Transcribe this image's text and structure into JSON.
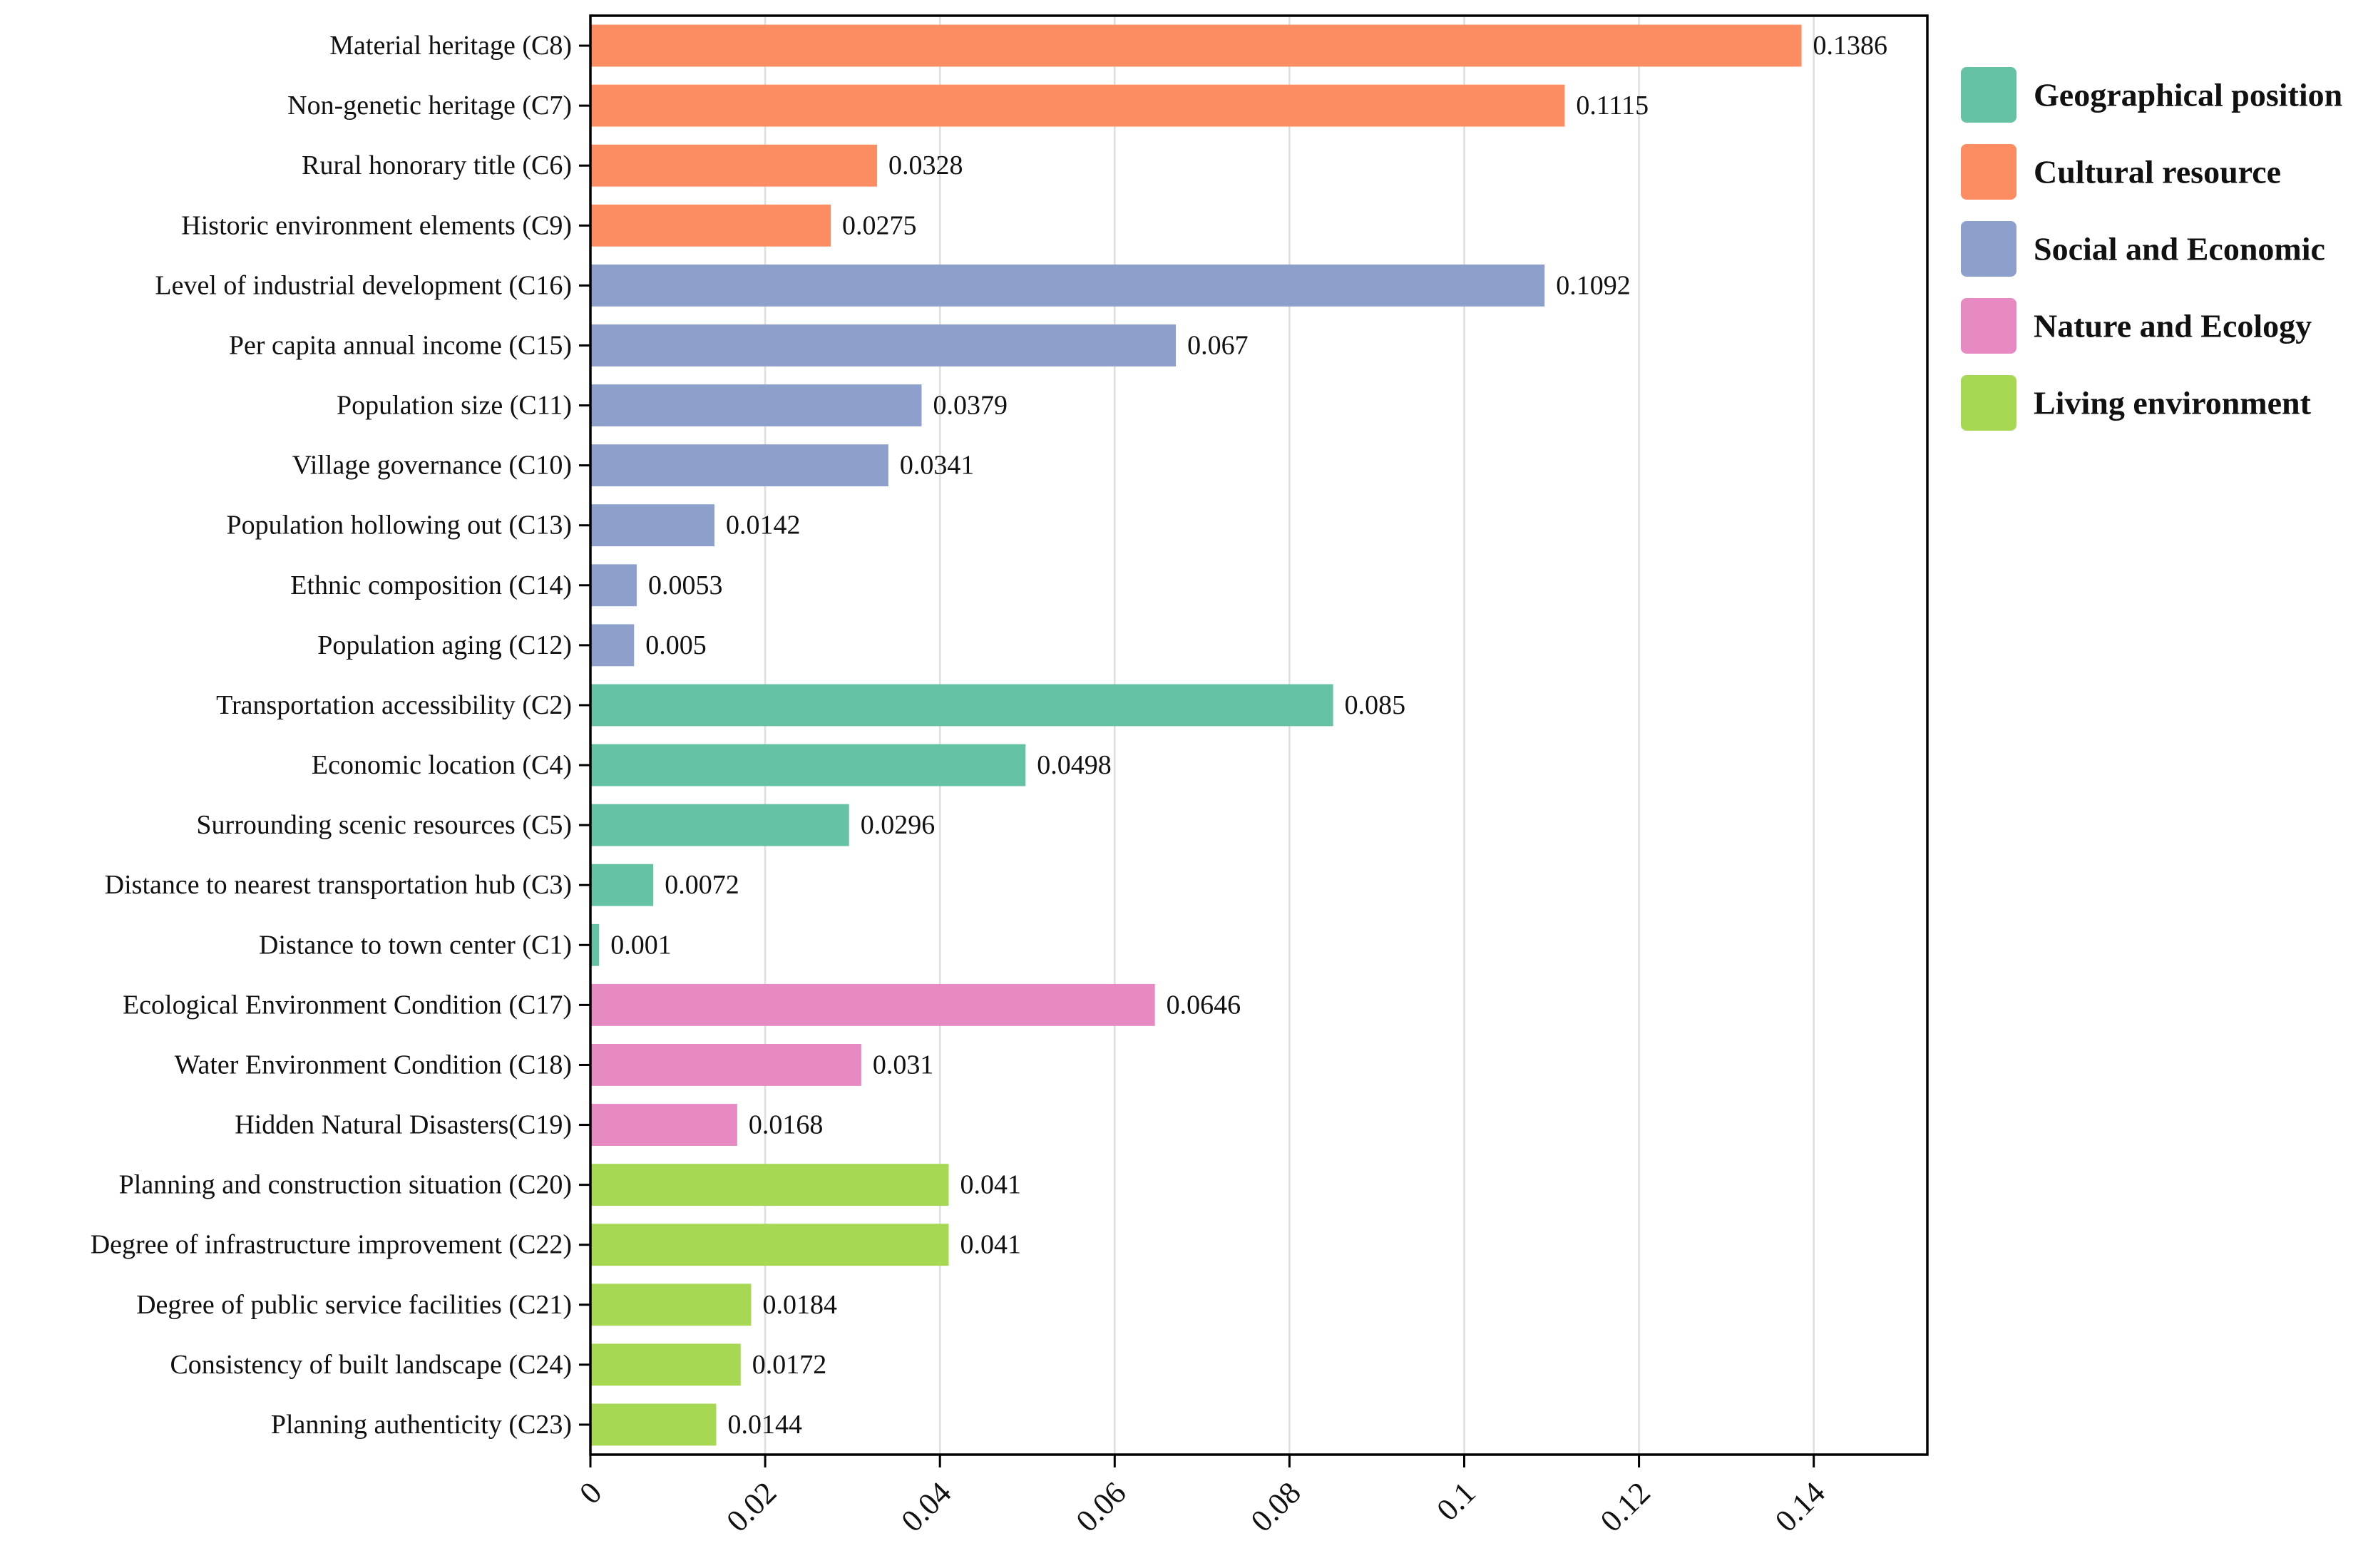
{
  "chart_data": {
    "type": "bar",
    "orientation": "horizontal",
    "title": "",
    "xlabel": "",
    "ylabel": "",
    "xlim": [
      0,
      0.153
    ],
    "x_ticks": [
      0,
      0.02,
      0.04,
      0.06,
      0.08,
      0.1,
      0.12,
      0.14
    ],
    "x_tick_labels": [
      "0",
      "0.02",
      "0.04",
      "0.06",
      "0.08",
      "0.1",
      "0.12",
      "0.14"
    ],
    "grid": "vertical",
    "legend_position": "top-right, outside plot",
    "groups": [
      {
        "name": "Geographical position",
        "color": "#66c2a5"
      },
      {
        "name": "Cultural resource",
        "color": "#fc8d62"
      },
      {
        "name": "Social and Economic",
        "color": "#8da0cb"
      },
      {
        "name": "Nature and Ecology",
        "color": "#e78ac3"
      },
      {
        "name": "Living environment",
        "color": "#a6d854"
      }
    ],
    "bars": [
      {
        "category": "Material heritage (C8)",
        "value": 0.1386,
        "label": "0.1386",
        "group": 1
      },
      {
        "category": "Non-genetic heritage (C7)",
        "value": 0.1115,
        "label": "0.1115",
        "group": 1
      },
      {
        "category": "Rural honorary title (C6)",
        "value": 0.0328,
        "label": "0.0328",
        "group": 1
      },
      {
        "category": "Historic environment elements (C9)",
        "value": 0.0275,
        "label": "0.0275",
        "group": 1
      },
      {
        "category": "Level of industrial development (C16)",
        "value": 0.1092,
        "label": "0.1092",
        "group": 2
      },
      {
        "category": "Per capita annual income (C15)",
        "value": 0.067,
        "label": "0.067",
        "group": 2
      },
      {
        "category": "Population size (C11)",
        "value": 0.0379,
        "label": "0.0379",
        "group": 2
      },
      {
        "category": "Village governance (C10)",
        "value": 0.0341,
        "label": "0.0341",
        "group": 2
      },
      {
        "category": "Population hollowing out (C13)",
        "value": 0.0142,
        "label": "0.0142",
        "group": 2
      },
      {
        "category": "Ethnic composition (C14)",
        "value": 0.0053,
        "label": "0.0053",
        "group": 2
      },
      {
        "category": "Population aging (C12)",
        "value": 0.005,
        "label": "0.005",
        "group": 2
      },
      {
        "category": "Transportation accessibility (C2)",
        "value": 0.085,
        "label": "0.085",
        "group": 0
      },
      {
        "category": "Economic location (C4)",
        "value": 0.0498,
        "label": "0.0498",
        "group": 0
      },
      {
        "category": "Surrounding scenic resources (C5)",
        "value": 0.0296,
        "label": "0.0296",
        "group": 0
      },
      {
        "category": "Distance to nearest transportation hub (C3)",
        "value": 0.0072,
        "label": "0.0072",
        "group": 0
      },
      {
        "category": "Distance to town center (C1)",
        "value": 0.001,
        "label": "0.001",
        "group": 0
      },
      {
        "category": "Ecological Environment Condition (C17)",
        "value": 0.0646,
        "label": "0.0646",
        "group": 3
      },
      {
        "category": "Water Environment Condition (C18)",
        "value": 0.031,
        "label": "0.031",
        "group": 3
      },
      {
        "category": "Hidden Natural Disasters(C19)",
        "value": 0.0168,
        "label": "0.0168",
        "group": 3
      },
      {
        "category": "Planning and construction situation (C20)",
        "value": 0.041,
        "label": "0.041",
        "group": 4
      },
      {
        "category": "Degree of infrastructure improvement (C22)",
        "value": 0.041,
        "label": "0.041",
        "group": 4
      },
      {
        "category": "Degree of public service facilities (C21)",
        "value": 0.0184,
        "label": "0.0184",
        "group": 4
      },
      {
        "category": "Consistency of built landscape (C24)",
        "value": 0.0172,
        "label": "0.0172",
        "group": 4
      },
      {
        "category": "Planning authenticity (C23)",
        "value": 0.0144,
        "label": "0.0144",
        "group": 4
      }
    ]
  }
}
